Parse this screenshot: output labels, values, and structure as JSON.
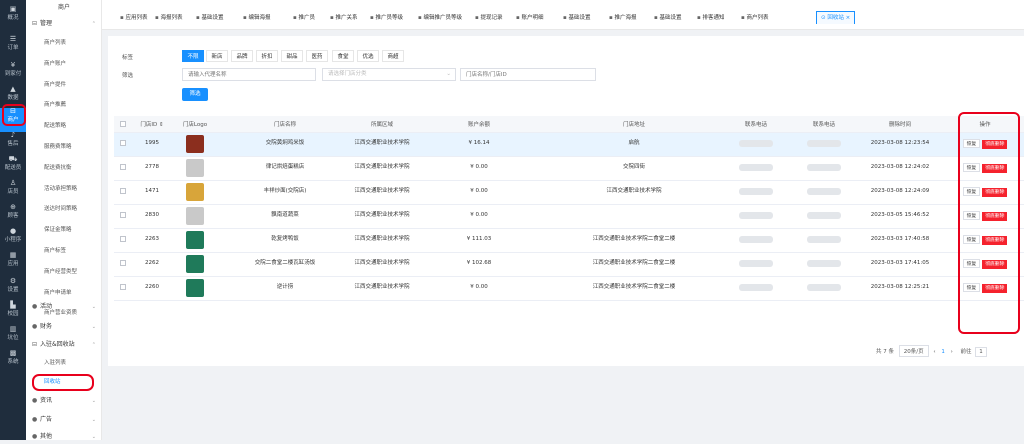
{
  "rail": [
    {
      "icon": "dashboard-icon",
      "glyph": "▣",
      "label": "概况"
    },
    {
      "icon": "order-icon",
      "glyph": "☰",
      "label": "订单"
    },
    {
      "icon": "pay-icon",
      "glyph": "¥",
      "label": "到家付"
    },
    {
      "icon": "data-icon",
      "glyph": "▲",
      "label": "数据"
    },
    {
      "icon": "store-icon",
      "glyph": "⊟",
      "label": "商户"
    },
    {
      "icon": "aftersale-icon",
      "glyph": "♪",
      "label": "售后"
    },
    {
      "icon": "courier-icon",
      "glyph": "⛟",
      "label": "配送员"
    },
    {
      "icon": "staff-icon",
      "glyph": "♙",
      "label": "店员"
    },
    {
      "icon": "customer-icon",
      "glyph": "⊕",
      "label": "顾客"
    },
    {
      "icon": "miniapp-icon",
      "glyph": "●",
      "label": "小程序"
    },
    {
      "icon": "apps-icon",
      "glyph": "▦",
      "label": "应用"
    },
    {
      "icon": "settings-icon",
      "glyph": "⚙",
      "label": "设置"
    },
    {
      "icon": "campus-icon",
      "glyph": "▙",
      "label": "校园"
    },
    {
      "icon": "unit-icon",
      "glyph": "▥",
      "label": "坑位"
    },
    {
      "icon": "system-icon",
      "glyph": "▩",
      "label": "系统"
    }
  ],
  "subnav": {
    "title": "商户",
    "manage": "管理",
    "manage_items": [
      "商户列表",
      "商户账户",
      "商户提件",
      "商户推薦",
      "配送策略",
      "服務费策略",
      "配送费抗衡",
      "活动承担策略",
      "送达时间策略",
      "保证金策略",
      "商户标签",
      "商户经营类型",
      "商户申请单",
      "商户营业资质"
    ],
    "activity": "活动",
    "finance": "财务",
    "entry": "入驻&回收站",
    "entry_items": [
      "入驻列表",
      "回收站"
    ],
    "news": "资讯",
    "ads": "广告",
    "more": "其他"
  },
  "tabs": [
    "应用列表",
    "海报列表",
    "基础设置",
    "编辑海报",
    "推广员",
    "推广关系",
    "推广员等级",
    "编辑推广员等级",
    "提现记录",
    "账户明细",
    "基础设置",
    "推广海报",
    "基础设置",
    "排客通知",
    "商户列表",
    "回收站"
  ],
  "filter": {
    "label_tag": "标签",
    "label_filter": "筛选",
    "chips": [
      "不限",
      "新店",
      "品牌",
      "折扣",
      "甜品",
      "医药",
      "食堂",
      "优选",
      "商超"
    ],
    "agent_placeholder": "请输入代理名称",
    "category_placeholder": "请选择门店分类",
    "store_placeholder": "门店名称/门店ID",
    "button": "筛选"
  },
  "table": {
    "headers": [
      "门店ID ⇕",
      "门店Logo",
      "门店名称",
      "所属区域",
      "账户余额",
      "门店地址",
      "联系电话",
      "联系电话",
      "删除时间",
      "操作"
    ],
    "rows": [
      {
        "id": "1995",
        "name": "交院黄焖鸡米饭",
        "area": "江西交通职业技术学院",
        "balance": "¥ 16.14",
        "addr": "启航",
        "deleted": "2023-03-08 12:23:54",
        "logo": "#8b2e1e"
      },
      {
        "id": "2778",
        "name": "律记烘焙蛋糕店",
        "area": "江西交通职业技术学院",
        "balance": "¥ 0.00",
        "addr": "交院四街",
        "deleted": "2023-03-08 12:24:02",
        "logo": "#c9c9c9"
      },
      {
        "id": "1471",
        "name": "丰祥炒面(交院店)",
        "area": "江西交通职业技术学院",
        "balance": "¥ 0.00",
        "addr": "江西交通职业技术学院",
        "deleted": "2023-03-08 12:24:09",
        "logo": "#d8a53a"
      },
      {
        "id": "2830",
        "name": "飘南道蔬菜",
        "area": "江西交通职业技术学院",
        "balance": "¥ 0.00",
        "addr": "",
        "deleted": "2023-03-05 15:46:52",
        "logo": "#c9c9c9"
      },
      {
        "id": "2263",
        "name": "乾复烤鸭饭",
        "area": "江西交通职业技术学院",
        "balance": "¥ 111.03",
        "addr": "江西交通职业技术学院二食堂二楼",
        "deleted": "2023-03-03 17:40:58",
        "logo": "#1f7a5a"
      },
      {
        "id": "2262",
        "name": "交院二食堂二楼瓦缸汤饭",
        "area": "江西交通职业技术学院",
        "balance": "¥ 102.68",
        "addr": "江西交通职业技术学院二食堂二楼",
        "deleted": "2023-03-03 17:41:05",
        "logo": "#1f7a5a"
      },
      {
        "id": "2260",
        "name": "逆计捞",
        "area": "江西交通职业技术学院",
        "balance": "¥ 0.00",
        "addr": "江西交通职业技术学院二食堂二楼",
        "deleted": "2023-03-08 12:25:21",
        "logo": "#1f7a5a"
      }
    ],
    "restore": "恢复",
    "delete": "彻底删除"
  },
  "pager": {
    "total": "共 7 条",
    "size": "20条/页",
    "prev": "‹",
    "page": "1",
    "next": "›",
    "goto": "前往",
    "goto_page": "1"
  },
  "colors": {
    "accent": "#1890ff",
    "danger": "#f5222d",
    "money": "#13ce66",
    "annotation": "#e8001c"
  }
}
